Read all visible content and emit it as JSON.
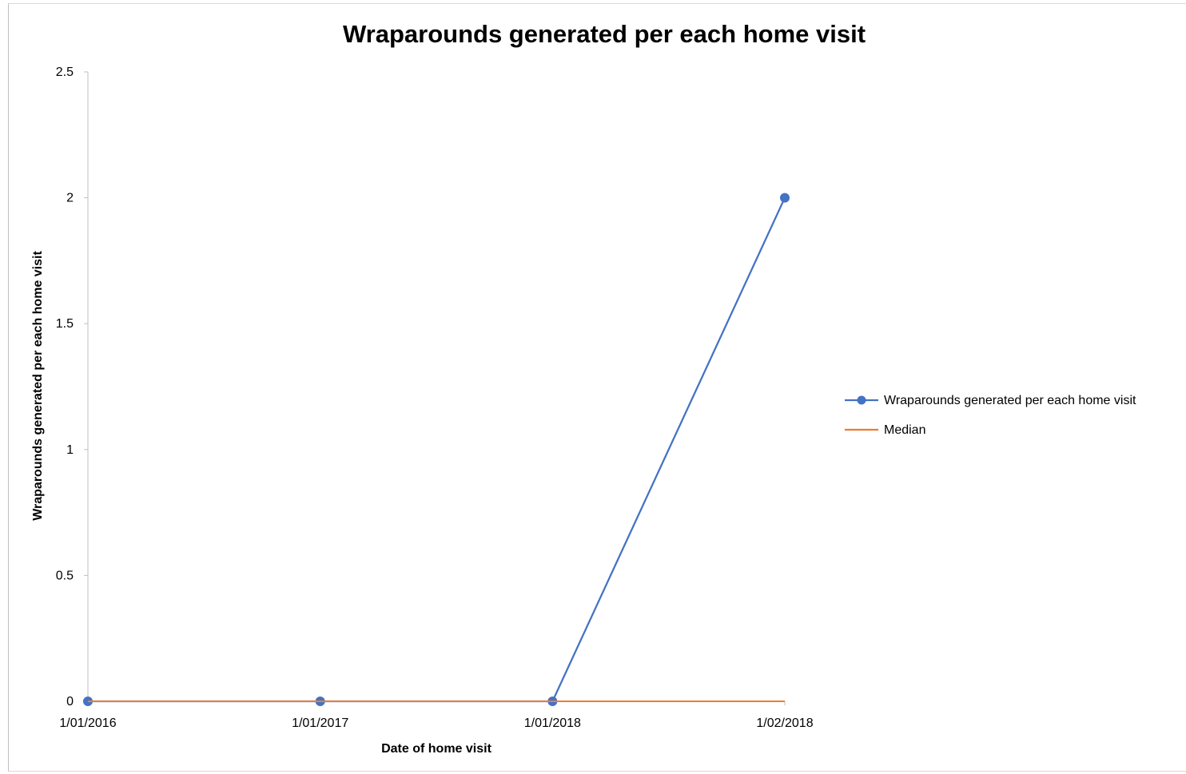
{
  "chart_data": {
    "type": "line",
    "title": "Wraparounds generated per each home visit",
    "xlabel": "Date of home visit",
    "ylabel": "Wraparounds generated per each home visit",
    "categories": [
      "1/01/2016",
      "1/01/2017",
      "1/01/2018",
      "1/02/2018"
    ],
    "ylim": [
      0,
      2.5
    ],
    "yticks": [
      "0",
      "0.5",
      "1",
      "1.5",
      "2",
      "2.5"
    ],
    "series": [
      {
        "name": "Wraparounds generated per each home visit",
        "values": [
          0,
          0,
          0,
          2
        ],
        "color": "#4472c4",
        "marker": "circle"
      },
      {
        "name": "Median",
        "values": [
          0,
          0,
          0,
          0
        ],
        "color": "#ed7d31",
        "marker": "none"
      }
    ],
    "grid": false,
    "legend_position": "right"
  }
}
